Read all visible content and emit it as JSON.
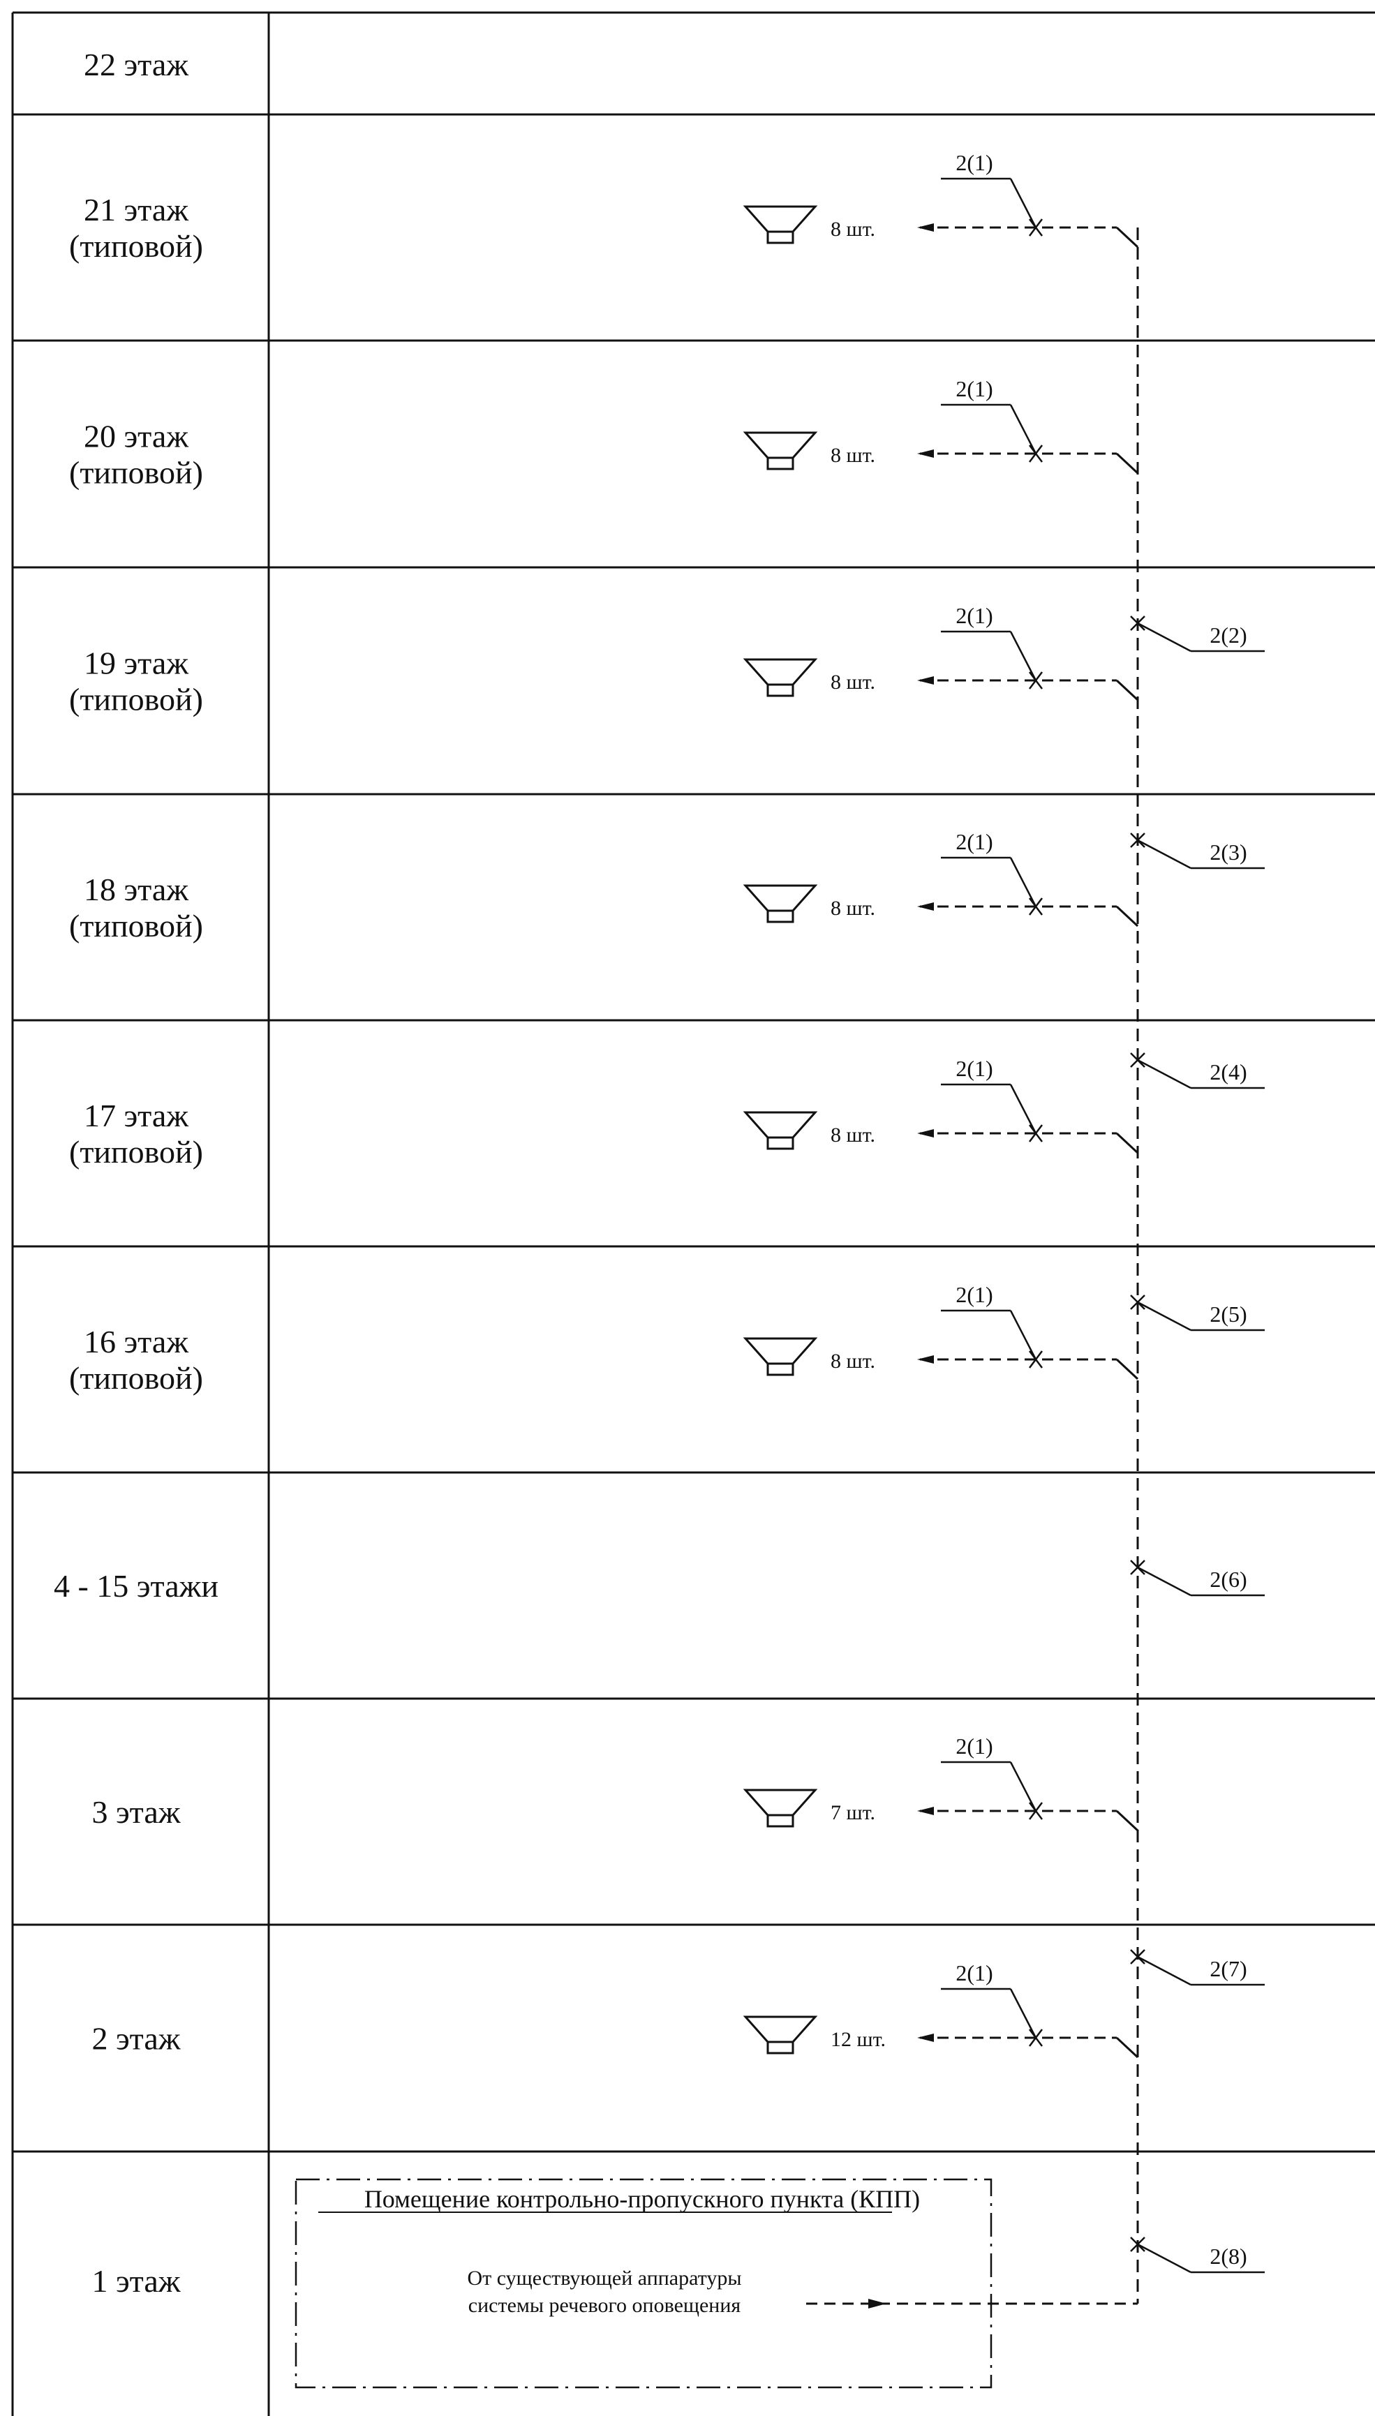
{
  "floors": [
    {
      "label": "22 этаж",
      "sublabel": ""
    },
    {
      "label": "21 этаж",
      "sublabel": "(типовой)"
    },
    {
      "label": "20 этаж",
      "sublabel": "(типовой)"
    },
    {
      "label": "19 этаж",
      "sublabel": "(типовой)"
    },
    {
      "label": "18 этаж",
      "sublabel": "(типовой)"
    },
    {
      "label": "17 этаж",
      "sublabel": "(типовой)"
    },
    {
      "label": "16 этаж",
      "sublabel": "(типовой)"
    },
    {
      "label": "4 - 15 этажи",
      "sublabel": ""
    },
    {
      "label": "3 этаж",
      "sublabel": ""
    },
    {
      "label": "2 этаж",
      "sublabel": ""
    },
    {
      "label": "1 этаж",
      "sublabel": ""
    }
  ],
  "speaker_groups": [
    {
      "floor": "21 этаж",
      "count": "8 шт.",
      "cable": "2(1)"
    },
    {
      "floor": "20 этаж",
      "count": "8 шт.",
      "cable": "2(1)"
    },
    {
      "floor": "19 этаж",
      "count": "8 шт.",
      "cable": "2(1)"
    },
    {
      "floor": "18 этаж",
      "count": "8 шт.",
      "cable": "2(1)"
    },
    {
      "floor": "17 этаж",
      "count": "8 шт.",
      "cable": "2(1)"
    },
    {
      "floor": "16 этаж",
      "count": "8 шт.",
      "cable": "2(1)"
    },
    {
      "floor": "3 этаж",
      "count": "7 шт.",
      "cable": "2(1)"
    },
    {
      "floor": "2 этаж",
      "count": "12 шт.",
      "cable": "2(1)"
    }
  ],
  "riser_cables": [
    "2(2)",
    "2(3)",
    "2(4)",
    "2(5)",
    "2(6)",
    "2(7)",
    "2(8)"
  ],
  "checkpoint_room": {
    "title": "Помещение контрольно-пропускного пункта (КПП)",
    "source_line1": "От существующей аппаратуры",
    "source_line2": "системы речевого оповещения"
  }
}
